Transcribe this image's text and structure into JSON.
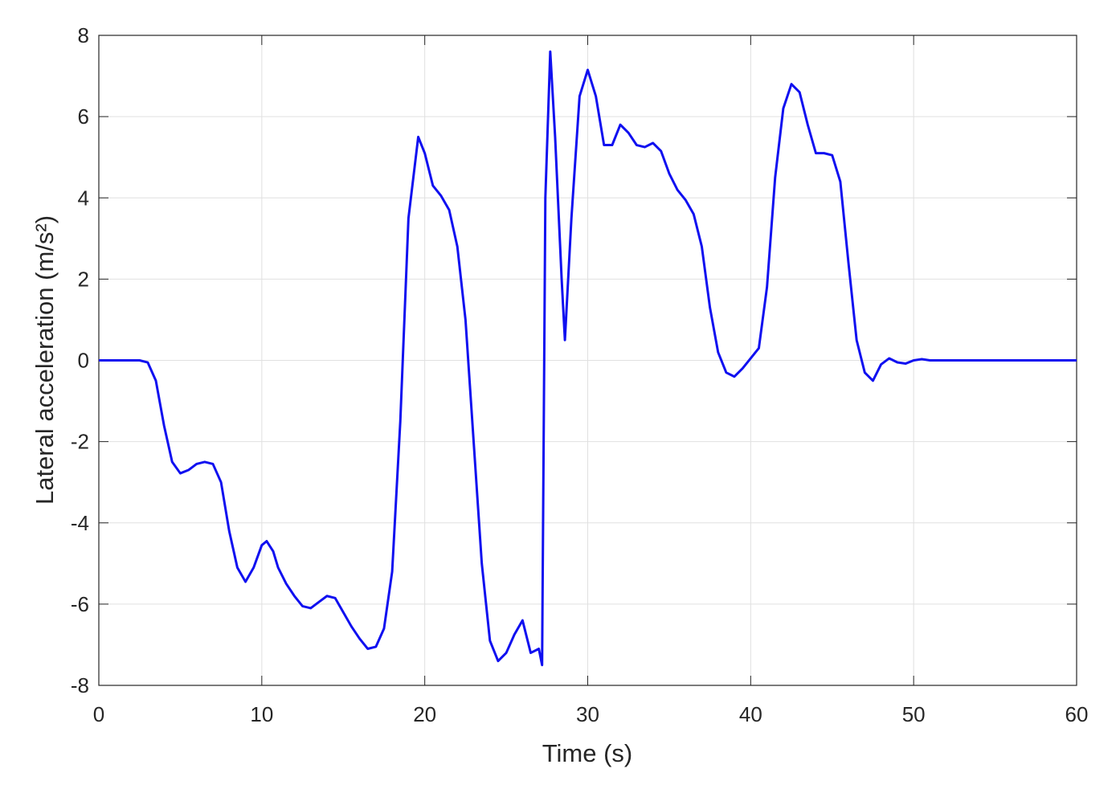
{
  "chart_data": {
    "type": "line",
    "xlabel": "Time (s)",
    "ylabel": "Lateral acceleration (m/s²)",
    "xlim": [
      0,
      60
    ],
    "ylim": [
      -8,
      8
    ],
    "xticks": [
      0,
      10,
      20,
      30,
      40,
      50,
      60
    ],
    "yticks": [
      -8,
      -6,
      -4,
      -2,
      0,
      2,
      4,
      6,
      8
    ],
    "grid": true,
    "x": [
      0,
      1,
      2,
      2.5,
      3,
      3.5,
      4,
      4.5,
      5,
      5.5,
      6,
      6.5,
      7,
      7.5,
      8,
      8.5,
      9,
      9.5,
      10,
      10.3,
      10.7,
      11,
      11.5,
      12,
      12.5,
      13,
      13.5,
      14,
      14.5,
      15,
      15.5,
      16,
      16.5,
      17,
      17.5,
      18,
      18.5,
      19,
      19.6,
      20,
      20.5,
      21,
      21.5,
      22,
      22.5,
      23,
      23.5,
      24,
      24.5,
      25,
      25.5,
      26,
      26.5,
      27,
      27.2,
      27.4,
      27.7,
      28,
      28.4,
      28.6,
      29,
      29.5,
      30,
      30.5,
      31,
      31.5,
      32,
      32.5,
      33,
      33.5,
      34,
      34.5,
      35,
      35.5,
      36,
      36.5,
      37,
      37.5,
      38,
      38.5,
      39,
      39.5,
      40,
      40.5,
      41,
      41.5,
      42,
      42.5,
      43,
      43.5,
      44,
      44.5,
      45,
      45.5,
      46,
      46.5,
      47,
      47.5,
      48,
      48.5,
      49,
      49.5,
      50,
      50.5,
      51,
      60
    ],
    "series": [
      {
        "name": "Lateral acceleration",
        "color": "#1010f0",
        "values": [
          0,
          0,
          0,
          0,
          -0.05,
          -0.5,
          -1.6,
          -2.5,
          -2.78,
          -2.7,
          -2.55,
          -2.5,
          -2.55,
          -3.0,
          -4.2,
          -5.1,
          -5.45,
          -5.1,
          -4.55,
          -4.45,
          -4.7,
          -5.1,
          -5.5,
          -5.8,
          -6.05,
          -6.1,
          -5.95,
          -5.8,
          -5.85,
          -6.2,
          -6.55,
          -6.85,
          -7.1,
          -7.05,
          -6.6,
          -5.2,
          -1.5,
          3.5,
          5.5,
          5.1,
          4.3,
          4.05,
          3.7,
          2.8,
          1.0,
          -2.0,
          -5.0,
          -6.9,
          -7.4,
          -7.2,
          -6.75,
          -6.4,
          -7.2,
          -7.1,
          -7.5,
          4.0,
          7.6,
          5.5,
          2.0,
          0.5,
          3.5,
          6.5,
          7.15,
          6.5,
          5.3,
          5.3,
          5.8,
          5.6,
          5.3,
          5.25,
          5.35,
          5.15,
          4.6,
          4.2,
          3.95,
          3.6,
          2.8,
          1.3,
          0.2,
          -0.3,
          -0.4,
          -0.2,
          0.05,
          0.3,
          1.8,
          4.5,
          6.2,
          6.8,
          6.6,
          5.8,
          5.1,
          5.1,
          5.05,
          4.4,
          2.4,
          0.5,
          -0.3,
          -0.5,
          -0.1,
          0.05,
          -0.05,
          -0.08,
          0,
          0.03,
          0,
          0
        ]
      }
    ]
  }
}
